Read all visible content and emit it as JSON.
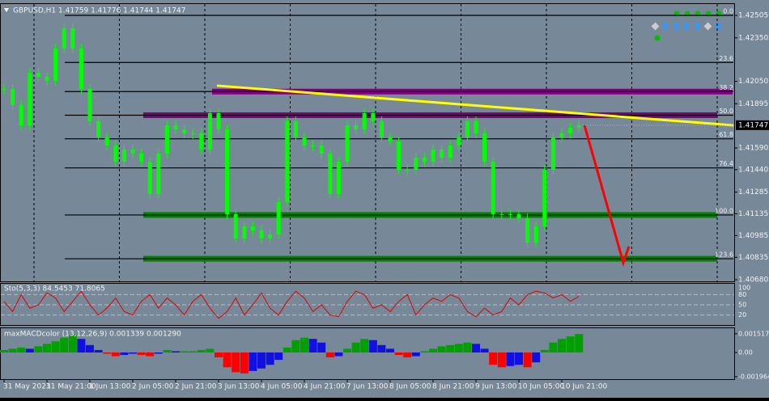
{
  "chart_data": [
    {
      "type": "candlestick",
      "title": "GBPUSD,H1 1.41759 1.41776 1.41744 1.41747",
      "color": "#00ff00",
      "categories": [
        "31 May 2021",
        null,
        null,
        null,
        null,
        "31 May 21:00",
        null,
        null,
        null,
        null,
        "1 Jun 13:00",
        null,
        null,
        null,
        null,
        "2 Jun 05:00",
        null,
        null,
        null,
        null,
        "2 Jun 21:00",
        null,
        null,
        null,
        null,
        "3 Jun 13:00",
        null,
        null,
        null,
        null,
        "4 Jun 05:00",
        null,
        null,
        null,
        null,
        "4 Jun 21:00",
        null,
        null,
        null,
        null,
        "7 Jun 13:00",
        null,
        null,
        null,
        null,
        "8 Jun 05:00",
        null,
        null,
        null,
        null,
        "8 Jun 21:00",
        null,
        null,
        null,
        null,
        "9 Jun 13:00",
        null,
        null,
        null,
        null,
        "10 Jun 05:00",
        null,
        null,
        null,
        null,
        "10 Jun 21:00",
        null,
        null
      ],
      "values": [
        1.41997,
        1.41886,
        1.41746,
        1.42109,
        1.42081,
        1.42053,
        1.42276,
        1.42416,
        1.42276,
        1.41997,
        1.41774,
        1.41663,
        1.41607,
        1.41495,
        1.41579,
        1.41551,
        1.41495,
        1.41272,
        1.41551,
        1.41746,
        1.41718,
        1.41691,
        1.41691,
        1.41579,
        1.4183,
        1.41718,
        1.41133,
        1.40965,
        1.41049,
        1.41021,
        1.40965,
        1.40993,
        1.41216,
        1.41774,
        1.41663,
        1.41607,
        1.41607,
        1.41551,
        1.41272,
        1.41495,
        1.41746,
        1.41718,
        1.4183,
        1.41774,
        1.41663,
        1.41635,
        1.41439,
        1.41439,
        1.41523,
        1.41495,
        1.41579,
        1.41523,
        1.41607,
        1.41663,
        1.41774,
        1.41691,
        1.41495,
        1.41133,
        1.41133,
        1.41133,
        1.41105,
        1.40937,
        1.41049,
        1.41439,
        1.41663,
        1.41691,
        1.4173,
        1.41747
      ],
      "ylim": [
        1.40669,
        1.42561
      ],
      "yticks": [
        1.42505,
        {
          "value": 1.4235,
          "label": "1.42350"
        },
        {
          "value": 1.4205,
          "label": "1.42050"
        },
        1.41895,
        {
          "value": 1.4159,
          "label": "1.41590"
        },
        {
          "value": 1.4144,
          "label": "1.41440"
        },
        1.41285,
        1.41135,
        1.40985,
        1.40835,
        {
          "value": 1.4068,
          "label": "1.40680"
        }
      ],
      "last_price": 1.41747,
      "grid": true,
      "levels": [
        {
          "label": "0.0",
          "value": 1.42505
        },
        {
          "label": "23.6",
          "value": 1.4218
        },
        {
          "label": "38.2",
          "value": 1.41979,
          "color": "#800080"
        },
        {
          "label": "50.0",
          "value": 1.41816,
          "color": "#800080"
        },
        {
          "label": "61.8",
          "value": 1.41653
        },
        {
          "label": "76.4",
          "value": 1.41452
        },
        {
          "label": "100.0",
          "value": 1.41127,
          "color": "#008000"
        },
        {
          "label": "123.6",
          "value": 1.40825,
          "color": "#008000"
        }
      ],
      "trendline": {
        "color": "#ffff00",
        "values": [
          1.4202,
          1.41746
        ]
      },
      "projection": {
        "color": "#ff0000",
        "values": [
          1.41747,
          1.40798
        ]
      }
    },
    {
      "type": "line",
      "title": "Sto(5,3,3) 84.5453 71.8065",
      "color": "#e00000",
      "values": [
        60,
        30,
        80,
        40,
        50,
        85,
        70,
        30,
        60,
        90,
        50,
        20,
        40,
        70,
        30,
        20,
        60,
        80,
        40,
        70,
        50,
        20,
        60,
        80,
        40,
        10,
        30,
        70,
        20,
        50,
        85,
        40,
        20,
        60,
        90,
        70,
        30,
        50,
        20,
        15,
        60,
        90,
        80,
        40,
        50,
        30,
        60,
        80,
        20,
        50,
        70,
        60,
        80,
        70,
        30,
        15,
        40,
        20,
        30,
        70,
        50,
        80,
        90,
        85,
        70,
        80,
        60,
        75
      ],
      "ylim": [
        0,
        100
      ],
      "yticks": [
        100,
        80,
        50,
        20
      ]
    },
    {
      "type": "bar",
      "title": "maxMACDcolor (13,12,26,9) 0.001339 0.001290",
      "colors": {
        "rising": "#00a000",
        "falling": "#1010e0",
        "down": "#ff0000"
      },
      "values": [
        0.0002,
        0.0003,
        0.0004,
        0.0003,
        0.0005,
        0.0007,
        0.0009,
        0.0012,
        0.0014,
        0.0011,
        0.0006,
        0.0002,
        -0.0001,
        -0.0003,
        -0.0002,
        -0.0001,
        -0.0002,
        -0.0003,
        -0.0001,
        0.0002,
        0.0001,
        0.0001,
        0.0001,
        0.0002,
        0.0003,
        -0.0004,
        -0.0012,
        -0.0016,
        -0.0017,
        -0.0015,
        -0.0013,
        -0.001,
        -0.0006,
        0.0004,
        0.001,
        0.0012,
        0.0011,
        0.0008,
        -0.0004,
        -0.0003,
        0.0003,
        0.0008,
        0.0011,
        0.001,
        0.0006,
        0.0003,
        -0.0002,
        -0.0004,
        -0.0003,
        0.0001,
        0.0003,
        0.0005,
        0.0006,
        0.0007,
        0.0008,
        0.0007,
        0.0003,
        -0.001,
        -0.0012,
        -0.0011,
        -0.001,
        -0.0012,
        -0.0008,
        0.0002,
        0.0008,
        0.0011,
        0.0013,
        0.0015
      ],
      "ylim": [
        -0.0021,
        0.0019
      ],
      "yticks": [
        0.001517,
        {
          "value": 0,
          "label": "0.00"
        },
        -0.001964
      ]
    }
  ]
}
